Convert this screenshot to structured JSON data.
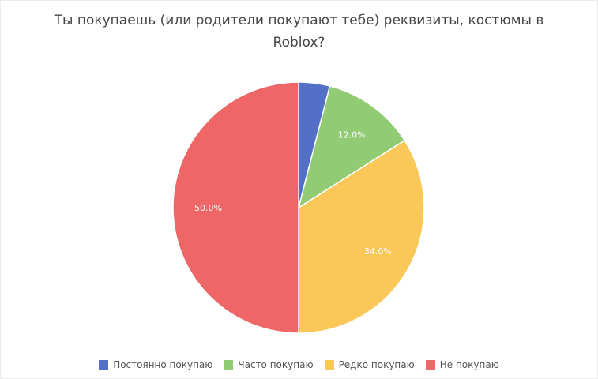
{
  "chart_data": {
    "type": "pie",
    "title": "Ты покупаешь (или родители покупают тебе) реквизиты, костюмы в Roblox?",
    "categories": [
      "Постоянно покупаю",
      "Часто покупаю",
      "Редко покупаю",
      "Не покупаю"
    ],
    "values": [
      4.0,
      12.0,
      34.0,
      50.0
    ],
    "labels": [
      "",
      "12.0%",
      "34.0%",
      "50.0%"
    ],
    "colors": [
      "#5470c6",
      "#91cc75",
      "#fac858",
      "#ee6666"
    ],
    "legend_position": "bottom"
  },
  "legend": [
    {
      "label": "Постоянно покупаю",
      "color": "#5470c6"
    },
    {
      "label": "Часто покупаю",
      "color": "#91cc75"
    },
    {
      "label": "Редко покупаю",
      "color": "#fac858"
    },
    {
      "label": "Не покупаю",
      "color": "#ee6666"
    }
  ]
}
